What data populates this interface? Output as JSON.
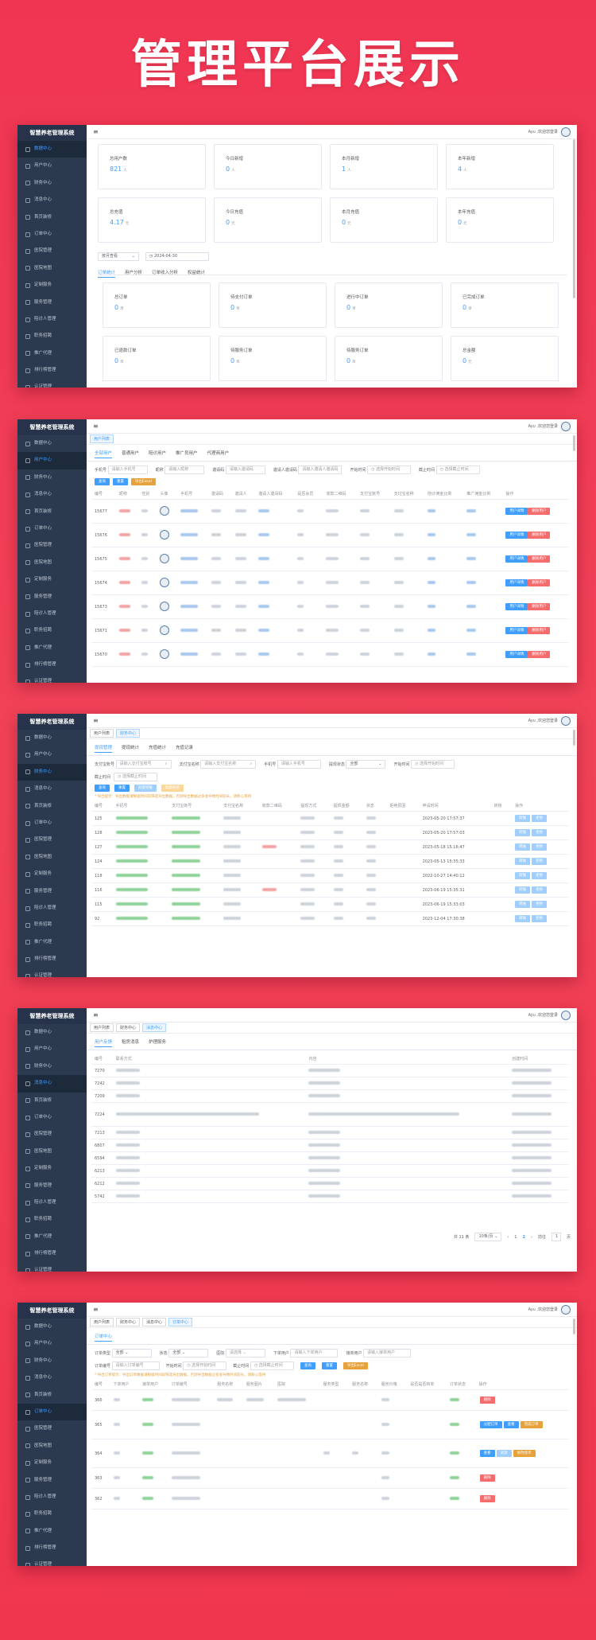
{
  "hero_title": "管理平台展示",
  "app_title": "智慧养老管理系统",
  "user_greeting": "Ayu ,欢迎您登录",
  "sidebar_items": [
    "数据中心",
    "用户中心",
    "财务中心",
    "消息中心",
    "首页装修",
    "订单中心",
    "医院管理",
    "医院地图",
    "定制服务",
    "服务管理",
    "陪诊人管理",
    "职务招聘",
    "推广代理",
    "排行榜管理",
    "认证管理"
  ],
  "tags": {
    "user_list": "用户列表",
    "finance": "财务中心",
    "message": "消息中心",
    "order": "订单中心"
  },
  "s1": {
    "row1": [
      {
        "label": "总用户数",
        "value": "821",
        "unit": "人"
      },
      {
        "label": "今日新增",
        "value": "0",
        "unit": "人"
      },
      {
        "label": "本月新增",
        "value": "1",
        "unit": "人"
      },
      {
        "label": "本年新增",
        "value": "4",
        "unit": "人"
      }
    ],
    "row2": [
      {
        "label": "总充值",
        "value": "4.17",
        "unit": "元"
      },
      {
        "label": "今日充值",
        "value": "0",
        "unit": "元"
      },
      {
        "label": "本月充值",
        "value": "0",
        "unit": "元"
      },
      {
        "label": "本年充值",
        "value": "0",
        "unit": "元"
      }
    ],
    "select": "按月查看",
    "date": "2024-04-30",
    "tabs": [
      "订单统计",
      "用户分析",
      "订单收入分析",
      "权益统计"
    ],
    "row3": [
      {
        "label": "总订单",
        "value": "0",
        "unit": "单"
      },
      {
        "label": "待支付订单",
        "value": "0",
        "unit": "单"
      },
      {
        "label": "进行中订单",
        "value": "0",
        "unit": "单"
      },
      {
        "label": "已完成订单",
        "value": "0",
        "unit": "单"
      }
    ],
    "row4": [
      {
        "label": "已退款订单",
        "value": "0",
        "unit": "单"
      },
      {
        "label": "待服务订单",
        "value": "0",
        "unit": "单"
      },
      {
        "label": "待服务订单",
        "value": "0",
        "unit": "单"
      },
      {
        "label": "总金额",
        "value": "0",
        "unit": "元"
      }
    ]
  },
  "s2": {
    "tabs": [
      "全部用户",
      "普通用户",
      "陪诊用户",
      "推广员用户",
      "代理商用户"
    ],
    "filters": [
      {
        "label": "手机号",
        "ph": "请输入手机号"
      },
      {
        "label": "昵称",
        "ph": "请输入昵称"
      },
      {
        "label": "邀请码",
        "ph": "请输入邀请码"
      },
      {
        "label": "邀请人邀请码",
        "ph": "请输入邀请人邀请码"
      },
      {
        "label": "开始时间",
        "ph": "选择开始时间"
      },
      {
        "label": "截止时间",
        "ph": "选择截止时间"
      }
    ],
    "buttons": [
      "查询",
      "重置",
      "导出Excel"
    ],
    "headers": [
      "编号",
      "昵称",
      "性别",
      "头像",
      "手机号",
      "邀请码",
      "邀请人",
      "邀请人邀请码",
      "是否会员",
      "收款二维码",
      "支付宝账号",
      "支付宝名称",
      "陪诊佣金比例",
      "推广佣金比例",
      "操作"
    ],
    "ids": [
      "15677",
      "15676",
      "15675",
      "15674",
      "15673",
      "15671",
      "15670"
    ],
    "op1": "用户详情",
    "op2": "删除用户"
  },
  "s3": {
    "tabs": [
      "提现管理",
      "提现统计",
      "充值统计",
      "充值记录"
    ],
    "filters": [
      {
        "label": "支付宝账号",
        "ph": "请输入支付宝账号"
      },
      {
        "label": "支付宝名称",
        "ph": "请输入支付宝名称"
      },
      {
        "label": "手机号",
        "ph": "请输入手机号"
      },
      {
        "label": "提现状态",
        "ph": "全部"
      },
      {
        "label": "开始时间",
        "ph": "选择开始时间"
      },
      {
        "label": "截止时间",
        "ph": "选择截止时间"
      }
    ],
    "buttons": [
      "查询",
      "重置",
      "批量转账",
      "批量拒绝"
    ],
    "notice": "* 导出提示：导出数据请根据时间段筛选导出数据，否则导出数据过多会导致时间较长，请耐心等待",
    "headers": [
      "编号",
      "手机号",
      "支付宝账号",
      "支付宝名称",
      "收款二维码",
      "提现方式",
      "提现金额",
      "状态",
      "拒绝原因",
      "申请时间",
      "转账",
      "操作"
    ],
    "rows": [
      {
        "id": "125",
        "time": "2023-05-20 17:57:37"
      },
      {
        "id": "128",
        "time": "2023-05-20 17:57:03"
      },
      {
        "id": "127",
        "time": "2023-05-18 15:16:47"
      },
      {
        "id": "124",
        "time": "2023-05-13 15:35:33"
      },
      {
        "id": "118",
        "time": "2022-10-27 14:40:12"
      },
      {
        "id": "116",
        "time": "2023-06-19 15:35:31"
      },
      {
        "id": "115",
        "time": "2023-06-19 15:33:03"
      },
      {
        "id": "92",
        "time": "2023-12-04 17:30:38"
      }
    ],
    "op1": "转账",
    "op2": "拒绝"
  },
  "s4": {
    "tabs": [
      "用户反馈",
      "租房消息",
      "护理服务"
    ],
    "headers": [
      "编号",
      "联系方式",
      "内容",
      "创建时间"
    ],
    "ids": [
      "7270",
      "7242",
      "7209",
      "7224",
      "7213",
      "6807",
      "6594",
      "6213",
      "6212",
      "5742"
    ],
    "pager": {
      "total": "共 11 条",
      "size": "10条/页",
      "pages": [
        "1",
        "2"
      ],
      "goto": "前往",
      "page": "1",
      "unit": "页"
    }
  },
  "s5": {
    "tab": "订单中心",
    "filters1": [
      {
        "label": "订单类型",
        "ph": "全部"
      },
      {
        "label": "状态",
        "ph": "全部"
      },
      {
        "label": "医院",
        "ph": "请选择"
      },
      {
        "label": "下单用户",
        "ph": "请输入下单用户"
      },
      {
        "label": "接单用户",
        "ph": "请输入接单用户"
      }
    ],
    "filters2": [
      {
        "label": "订单编号",
        "ph": "请输入订单编号"
      },
      {
        "label": "开始时间",
        "ph": "选择开始时间"
      },
      {
        "label": "截止时间",
        "ph": "选择截止时间"
      }
    ],
    "buttons": [
      "查询",
      "重置",
      "导出Excel"
    ],
    "notice": "* 导出订单提示：导出订单数据请根据时间段筛选导出数据，否则导出数据过多会导致时间较长，请耐心等待",
    "headers": [
      "编号",
      "下单用户",
      "接单用户",
      "订单编号",
      "服务名称",
      "服务图片",
      "医院",
      "服务类型",
      "服务名称",
      "服务价格",
      "是否是否转单",
      "订单状态",
      "操作"
    ],
    "ids": [
      "366",
      "365",
      "364",
      "363",
      "362"
    ],
    "ops": {
      "del": "删除",
      "assign": "分配订单",
      "check": "查看",
      "complete": "完成订单",
      "refund": "退款",
      "reassign": "修改接单"
    }
  }
}
